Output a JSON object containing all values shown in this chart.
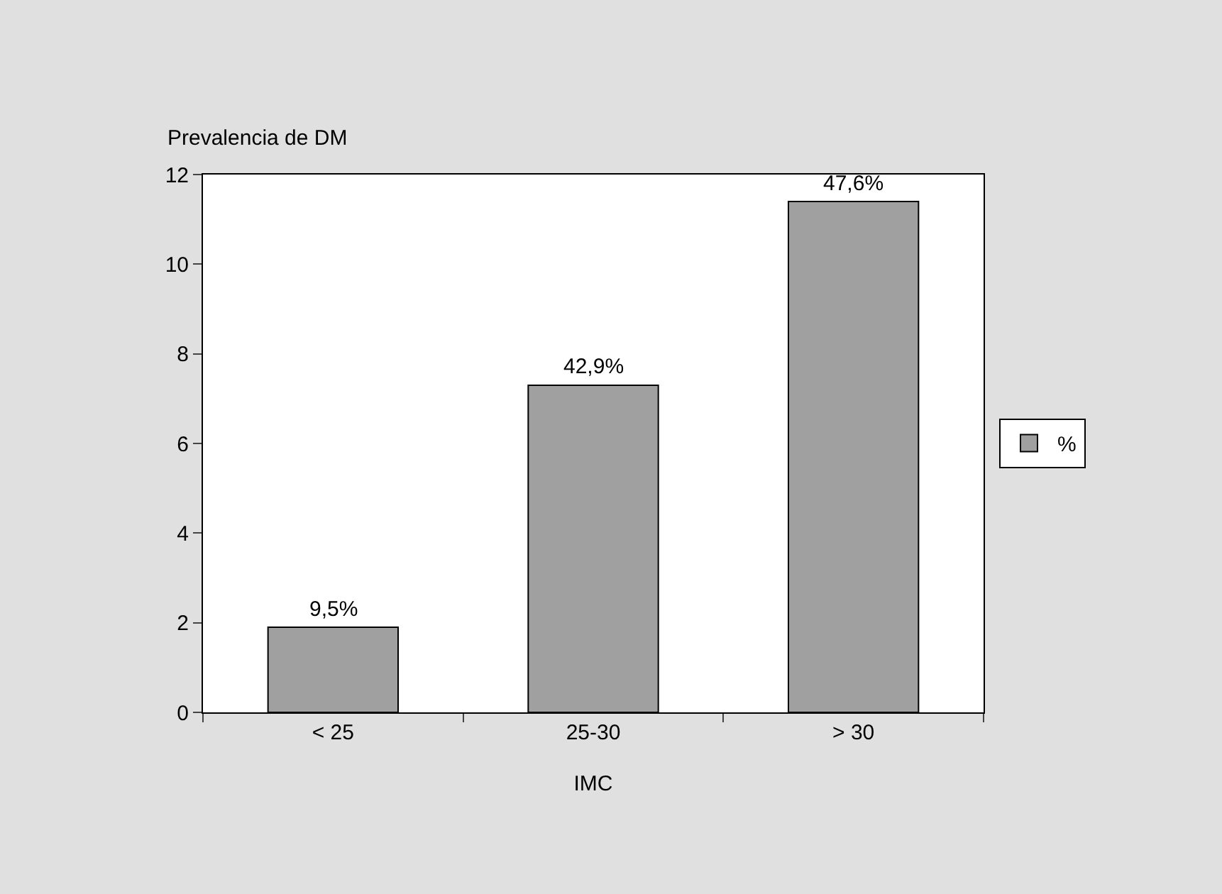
{
  "chart_data": {
    "type": "bar",
    "xlabel": "IMC",
    "ylabel": "Prevalencia de DM",
    "categories": [
      "< 25",
      "25-30",
      "> 30"
    ],
    "series": [
      {
        "name": "%",
        "color": "#a0a0a0",
        "values": [
          1.9,
          7.3,
          11.4
        ]
      }
    ],
    "annotations": [
      {
        "text": "9,5%",
        "x": "< 25",
        "y": 1.9
      },
      {
        "text": "42,9%",
        "x": "25-30",
        "y": 7.3
      },
      {
        "text": "47,6%",
        "x": "> 30",
        "y": 11.4
      }
    ],
    "ylim": [
      0,
      12
    ],
    "yticks": [
      0,
      2,
      4,
      6,
      8,
      10,
      12
    ],
    "grid": false,
    "legend": "right"
  }
}
